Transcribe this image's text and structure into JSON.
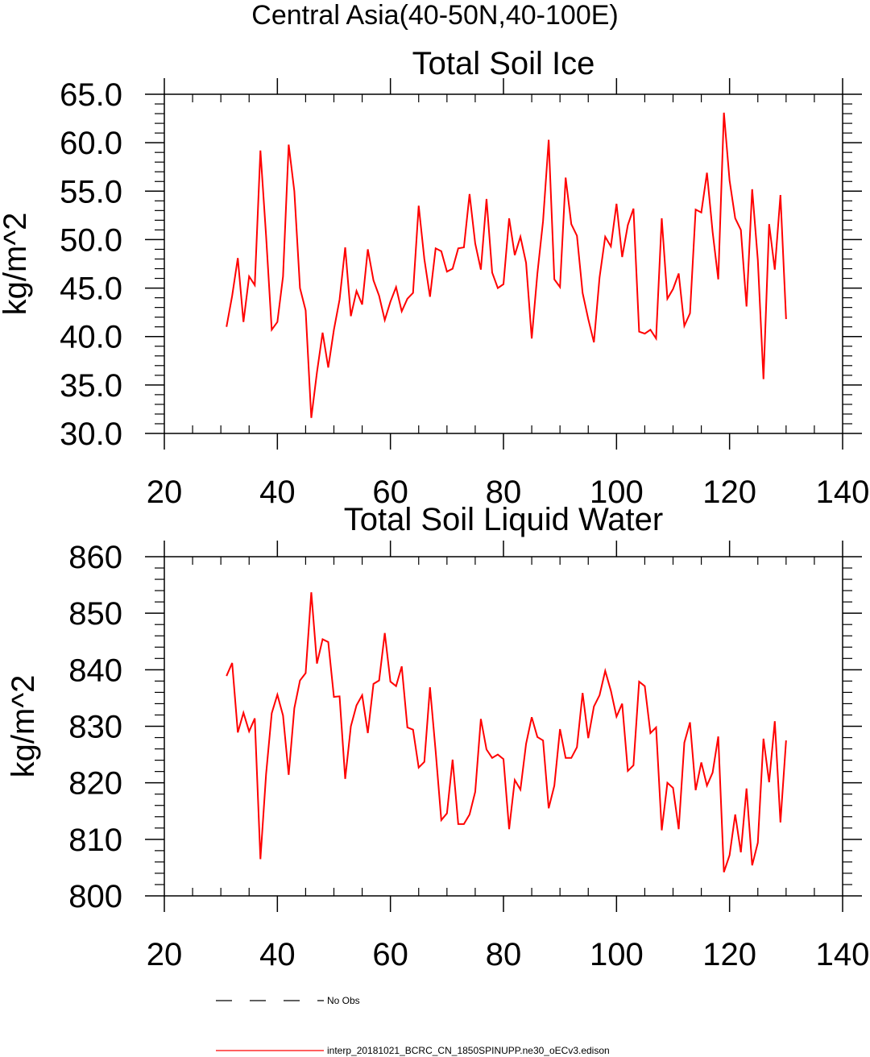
{
  "page": {
    "suptitle": "Central Asia(40-50N,40-100E)"
  },
  "chart_data": [
    {
      "type": "line",
      "title": "Total Soil Ice",
      "xlabel": "",
      "ylabel": "kg/m^2",
      "xlim": [
        20,
        140
      ],
      "ylim": [
        30,
        65
      ],
      "xticks": [
        20,
        40,
        60,
        80,
        100,
        120,
        140
      ],
      "xtick_labels": [
        "20",
        "40",
        "60",
        "80",
        "100",
        "120",
        "140"
      ],
      "yticks": [
        30,
        35,
        40,
        45,
        50,
        55,
        60,
        65
      ],
      "ytick_labels": [
        "30.0",
        "35.0",
        "40.0",
        "45.0",
        "50.0",
        "55.0",
        "60.0",
        "65.0"
      ],
      "grid": false,
      "series": [
        {
          "name": "interp_20181021_BCRC_CN_1850SPINUPP.ne30_oECv3.edison",
          "color": "#ff0000",
          "x_start": 31,
          "values": [
            41.0,
            44.2,
            48.1,
            41.5,
            46.2,
            45.3,
            59.2,
            50.4,
            40.7,
            41.5,
            46.2,
            59.8,
            55.0,
            45.0,
            42.7,
            31.6,
            36.3,
            40.4,
            36.8,
            40.7,
            43.8,
            49.2,
            42.1,
            44.7,
            43.3,
            49.0,
            45.8,
            44.2,
            41.7,
            43.6,
            45.1,
            42.6,
            43.9,
            44.5,
            53.5,
            48.0,
            44.1,
            49.1,
            48.8,
            46.7,
            47.0,
            49.1,
            49.2,
            54.7,
            49.6,
            46.9,
            54.2,
            46.6,
            45.0,
            45.4,
            52.2,
            48.4,
            50.3,
            47.6,
            39.8,
            46.5,
            51.9,
            60.3,
            45.9,
            45.1,
            56.4,
            51.6,
            50.4,
            44.5,
            41.8,
            39.4,
            46.1,
            50.3,
            49.3,
            53.7,
            48.2,
            51.5,
            53.2,
            40.5,
            40.3,
            40.7,
            39.8,
            52.2,
            43.9,
            44.9,
            46.5,
            41.1,
            42.4,
            53.1,
            52.8,
            56.9,
            50.8,
            45.9,
            63.1,
            56.1,
            52.2,
            51.0,
            43.1,
            55.2,
            47.9,
            35.6,
            51.6,
            46.9,
            54.6,
            41.8
          ]
        }
      ]
    },
    {
      "type": "line",
      "title": "Total Soil Liquid Water",
      "xlabel": "",
      "ylabel": "kg/m^2",
      "xlim": [
        20,
        140
      ],
      "ylim": [
        800,
        860
      ],
      "xticks": [
        20,
        40,
        60,
        80,
        100,
        120,
        140
      ],
      "xtick_labels": [
        "20",
        "40",
        "60",
        "80",
        "100",
        "120",
        "140"
      ],
      "yticks": [
        800,
        810,
        820,
        830,
        840,
        850,
        860
      ],
      "ytick_labels": [
        "800",
        "810",
        "820",
        "830",
        "840",
        "850",
        "860"
      ],
      "grid": false,
      "series": [
        {
          "name": "interp_20181021_BCRC_CN_1850SPINUPP.ne30_oECv3.edison",
          "color": "#ff0000",
          "x_start": 31,
          "values": [
            838.9,
            841.2,
            828.9,
            832.4,
            829.1,
            831.4,
            806.5,
            821.5,
            832.3,
            835.6,
            831.9,
            821.4,
            833.2,
            838.1,
            839.4,
            853.7,
            841.1,
            845.4,
            844.9,
            835.2,
            835.3,
            820.7,
            830.0,
            833.7,
            835.5,
            828.8,
            837.5,
            838.1,
            846.5,
            837.9,
            837.1,
            840.6,
            829.8,
            829.4,
            822.7,
            823.7,
            836.9,
            825.6,
            813.4,
            814.6,
            824.1,
            812.7,
            812.7,
            814.4,
            818.4,
            831.3,
            825.9,
            824.4,
            825.0,
            824.2,
            811.8,
            820.5,
            818.8,
            826.9,
            831.6,
            828.1,
            827.5,
            815.5,
            819.5,
            829.5,
            824.4,
            824.4,
            826.3,
            835.9,
            827.9,
            833.5,
            835.5,
            839.8,
            836.3,
            831.7,
            834.0,
            822.1,
            823.1,
            837.9,
            837.1,
            828.8,
            829.8,
            811.6,
            820.0,
            819.1,
            811.8,
            827.1,
            830.7,
            818.7,
            823.6,
            819.5,
            821.8,
            828.2,
            804.2,
            807.2,
            814.4,
            807.7,
            819.0,
            805.4,
            809.4,
            827.8,
            820.1,
            830.9,
            813.0,
            827.5
          ]
        }
      ]
    }
  ],
  "legend": [
    {
      "label": "No Obs",
      "color": "#000000",
      "style": "dashed"
    },
    {
      "label": "interp_20181021_BCRC_CN_1850SPINUPP.ne30_oECv3.edison",
      "color": "#ff0000",
      "style": "solid"
    }
  ]
}
